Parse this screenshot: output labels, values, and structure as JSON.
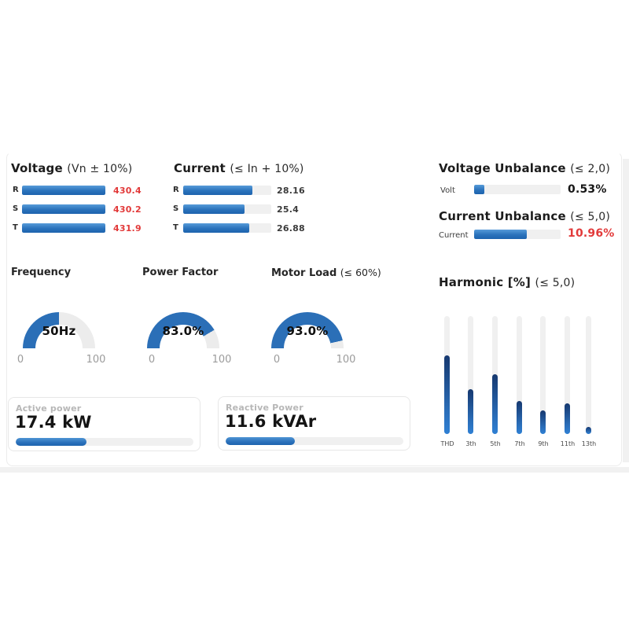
{
  "colors": {
    "gauge_blue": "#2b6fb7",
    "gauge_track": "#ececec",
    "bar_blue": "#2a72bb",
    "alarm_red": "#e23a3a",
    "track_gray": "#f0f0f0"
  },
  "voltage": {
    "title": "Voltage",
    "limit": "(Vn ± 10%)",
    "rows": [
      {
        "label": "R",
        "value": "430.4",
        "fill_pct": 100
      },
      {
        "label": "S",
        "value": "430.2",
        "fill_pct": 100
      },
      {
        "label": "T",
        "value": "431.9",
        "fill_pct": 100
      }
    ]
  },
  "current": {
    "title": "Current",
    "limit": "(≤ In + 10%)",
    "rows": [
      {
        "label": "R",
        "value": "28.16",
        "fill_pct": 79
      },
      {
        "label": "S",
        "value": "25.4",
        "fill_pct": 70
      },
      {
        "label": "T",
        "value": "26.88",
        "fill_pct": 75
      }
    ]
  },
  "voltage_unbalance": {
    "title": "Voltage Unbalance",
    "limit": "(≤ 2,0)",
    "label": "Volt",
    "value": "0.53%",
    "fill_pct": 12
  },
  "current_unbalance": {
    "title": "Current Unbalance",
    "limit": "(≤ 5,0)",
    "label": "Current",
    "value": "10.96%",
    "fill_pct": 61
  },
  "gauges": [
    {
      "title": "Frequency",
      "limit": "",
      "value": "50Hz",
      "pct": 50,
      "min": "0",
      "max": "100"
    },
    {
      "title": "Power Factor",
      "limit": "",
      "value": "83.0%",
      "pct": 83,
      "min": "0",
      "max": "100"
    },
    {
      "title": "Motor Load",
      "limit": "(≤ 60%)",
      "value": "93.0%",
      "pct": 93,
      "min": "0",
      "max": "100"
    }
  ],
  "harmonic": {
    "title": "Harmonic [%]",
    "limit": "(≤ 5,0)",
    "bars": [
      {
        "label": "THD",
        "fill_pct": 67
      },
      {
        "label": "3th",
        "fill_pct": 38
      },
      {
        "label": "5th",
        "fill_pct": 51
      },
      {
        "label": "7th",
        "fill_pct": 28
      },
      {
        "label": "9th",
        "fill_pct": 20
      },
      {
        "label": "11th",
        "fill_pct": 26
      },
      {
        "label": "13th",
        "fill_pct": 6
      }
    ]
  },
  "power_cards": [
    {
      "label": "Active power",
      "value": "17.4 kW",
      "fill_pct": 40
    },
    {
      "label": "Reactive Power",
      "value": "11.6 kVAr",
      "fill_pct": 39
    }
  ]
}
